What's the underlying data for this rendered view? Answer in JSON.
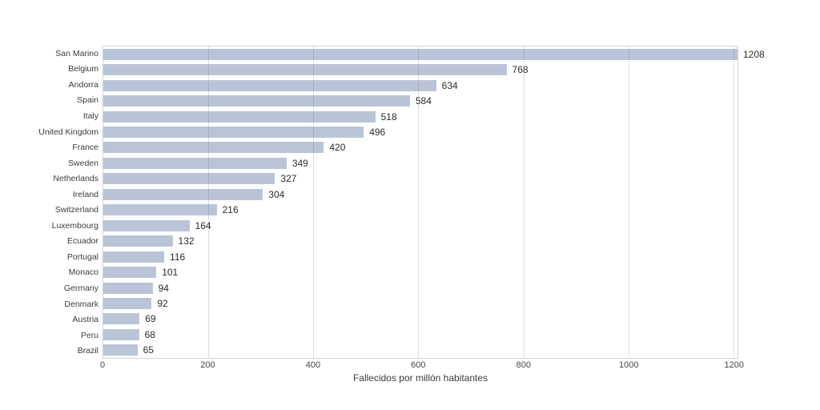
{
  "chart_data": {
    "type": "bar",
    "orientation": "horizontal",
    "title": "",
    "xlabel": "Fallecidos por millón habitantes",
    "ylabel": "",
    "categories": [
      "San Marino",
      "Belgium",
      "Andorra",
      "Spain",
      "Italy",
      "United Kingdom",
      "France",
      "Sweden",
      "Netherlands",
      "Ireland",
      "Switzerland",
      "Luxembourg",
      "Ecuador",
      "Portugal",
      "Monaco",
      "Germany",
      "Denmark",
      "Austria",
      "Peru",
      "Brazil"
    ],
    "values": [
      1208,
      768,
      634,
      584,
      518,
      496,
      420,
      349,
      327,
      304,
      216,
      164,
      132,
      116,
      101,
      94,
      92,
      69,
      68,
      65
    ],
    "xlim": [
      0,
      1208
    ],
    "xticks": [
      0,
      200,
      400,
      600,
      800,
      1000,
      1200
    ],
    "grid": true,
    "legend": "none",
    "bar_color": "#b9c5d7",
    "grid_color": "#d6d9dd",
    "background_color": "#ffffff"
  }
}
